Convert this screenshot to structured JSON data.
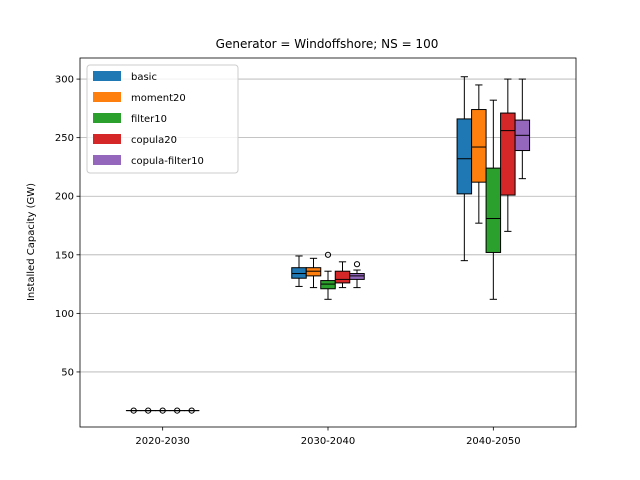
{
  "chart_data": {
    "type": "box",
    "title": "Generator = Windoffshore; NS = 100",
    "xlabel": "",
    "ylabel": "Installed Capacity (GW)",
    "ylim": [
      3,
      318
    ],
    "yticks": [
      50,
      100,
      150,
      200,
      250,
      300
    ],
    "grid": "horizontal",
    "legend_position": "top-left",
    "categories": [
      "2020-2030",
      "2030-2040",
      "2040-2050"
    ],
    "series": [
      {
        "name": "basic",
        "color": "#1f77b4",
        "boxes": [
          {
            "whislo": 17,
            "q1": 17,
            "med": 17,
            "q3": 17,
            "whishi": 17,
            "fliers": [
              17
            ]
          },
          {
            "whislo": 123,
            "q1": 130,
            "med": 134,
            "q3": 139,
            "whishi": 149,
            "fliers": []
          },
          {
            "whislo": 145,
            "q1": 202,
            "med": 232,
            "q3": 266,
            "whishi": 302,
            "fliers": []
          }
        ]
      },
      {
        "name": "moment20",
        "color": "#ff7f0e",
        "boxes": [
          {
            "whislo": 17,
            "q1": 17,
            "med": 17,
            "q3": 17,
            "whishi": 17,
            "fliers": [
              17
            ]
          },
          {
            "whislo": 122,
            "q1": 132,
            "med": 136,
            "q3": 139,
            "whishi": 147,
            "fliers": []
          },
          {
            "whislo": 177,
            "q1": 212,
            "med": 242,
            "q3": 274,
            "whishi": 295,
            "fliers": []
          }
        ]
      },
      {
        "name": "filter10",
        "color": "#2ca02c",
        "boxes": [
          {
            "whislo": 17,
            "q1": 17,
            "med": 17,
            "q3": 17,
            "whishi": 17,
            "fliers": [
              17
            ]
          },
          {
            "whislo": 112,
            "q1": 121,
            "med": 125,
            "q3": 128,
            "whishi": 136,
            "fliers": [
              150
            ]
          },
          {
            "whislo": 112,
            "q1": 152,
            "med": 181,
            "q3": 224,
            "whishi": 282,
            "fliers": []
          }
        ]
      },
      {
        "name": "copula20",
        "color": "#d62728",
        "boxes": [
          {
            "whislo": 17,
            "q1": 17,
            "med": 17,
            "q3": 17,
            "whishi": 17,
            "fliers": [
              17
            ]
          },
          {
            "whislo": 122,
            "q1": 126,
            "med": 129,
            "q3": 136,
            "whishi": 144,
            "fliers": []
          },
          {
            "whislo": 170,
            "q1": 201,
            "med": 256,
            "q3": 271,
            "whishi": 300,
            "fliers": []
          }
        ]
      },
      {
        "name": "copula-filter10",
        "color": "#9467bd",
        "boxes": [
          {
            "whislo": 17,
            "q1": 17,
            "med": 17,
            "q3": 17,
            "whishi": 17,
            "fliers": [
              17
            ]
          },
          {
            "whislo": 122,
            "q1": 129,
            "med": 132,
            "q3": 134,
            "whishi": 137,
            "fliers": [
              142
            ]
          },
          {
            "whislo": 215,
            "q1": 239,
            "med": 252,
            "q3": 265,
            "whishi": 300,
            "fliers": []
          }
        ]
      }
    ]
  }
}
